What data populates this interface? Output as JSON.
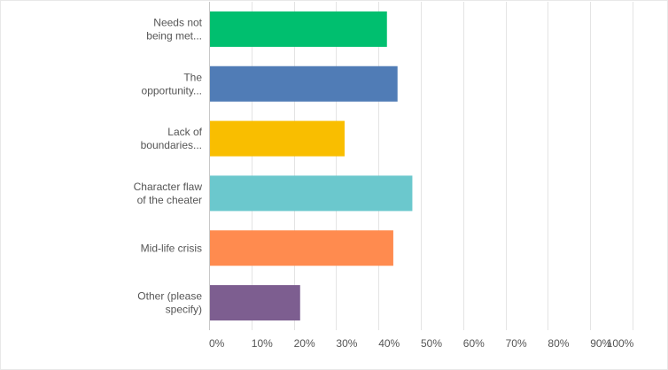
{
  "chart_data": {
    "type": "bar",
    "orientation": "horizontal",
    "categories": [
      [
        "Needs not",
        "being met..."
      ],
      [
        "The",
        "opportunity..."
      ],
      [
        "Lack of",
        "boundaries..."
      ],
      [
        "Character flaw",
        "of the cheater"
      ],
      [
        "Mid-life crisis"
      ],
      [
        "Other (please",
        "specify)"
      ]
    ],
    "values": [
      42,
      44.5,
      32,
      48,
      43.5,
      21.5
    ],
    "colors": [
      "#00bf6f",
      "#507cb6",
      "#f9be00",
      "#6bc8cd",
      "#ff8b4f",
      "#7d5e90"
    ],
    "x_ticks": [
      "0%",
      "10%",
      "20%",
      "30%",
      "40%",
      "50%",
      "60%",
      "70%",
      "80%",
      "90%",
      "100%"
    ],
    "xlim": [
      0,
      100
    ],
    "unit": "%",
    "grid": true,
    "title": "",
    "xlabel": "",
    "ylabel": ""
  }
}
